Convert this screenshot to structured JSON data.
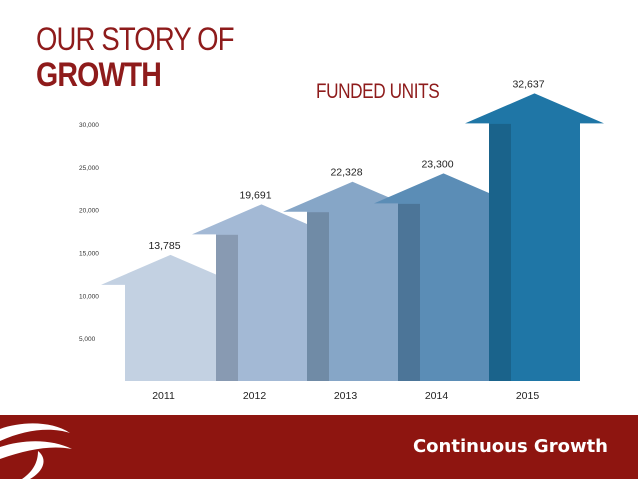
{
  "header": {
    "title_line1": "OUR STORY OF",
    "title_line2": "GROWTH"
  },
  "footer": {
    "label": "Continuous Growth"
  },
  "colors": {
    "brand_red": "#8e1b1b",
    "footer_red": "#8e1510"
  },
  "chart_data": {
    "type": "bar",
    "title": "FUNDED UNITS",
    "xlabel": "",
    "ylabel": "",
    "categories": [
      "2011",
      "2012",
      "2013",
      "2014",
      "2015"
    ],
    "values": [
      13785,
      19691,
      22328,
      23300,
      32637
    ],
    "value_labels": [
      "13,785",
      "19,691",
      "22,328",
      "23,300",
      "32,637"
    ],
    "yticks": [
      5000,
      10000,
      15000,
      20000,
      25000,
      30000
    ],
    "ytick_labels": [
      "5,000",
      "10,000",
      "15,000",
      "20,000",
      "25,000",
      "30,000"
    ],
    "ylim": [
      0,
      30000
    ],
    "grid": false,
    "bar_style": "arrow",
    "colors": [
      "#c3d1e2",
      "#a3b9d5",
      "#86a6c7",
      "#5b8db6",
      "#1f76a6"
    ]
  }
}
